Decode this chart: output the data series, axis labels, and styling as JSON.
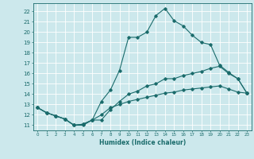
{
  "title": "",
  "xlabel": "Humidex (Indice chaleur)",
  "bg_color": "#cce8ec",
  "grid_color": "#ffffff",
  "line_color": "#1a6b6b",
  "xlim": [
    -0.5,
    23.5
  ],
  "ylim": [
    10.5,
    22.8
  ],
  "yticks": [
    11,
    12,
    13,
    14,
    15,
    16,
    17,
    18,
    19,
    20,
    21,
    22
  ],
  "xticks": [
    0,
    1,
    2,
    3,
    4,
    5,
    6,
    7,
    8,
    9,
    10,
    11,
    12,
    13,
    14,
    15,
    16,
    17,
    18,
    19,
    20,
    21,
    22,
    23
  ],
  "line1_x": [
    0,
    1,
    2,
    3,
    4,
    5,
    6,
    7,
    8,
    9,
    10,
    11,
    12,
    13,
    14,
    15,
    16,
    17,
    18,
    19,
    20,
    21,
    22,
    23
  ],
  "line1_y": [
    12.7,
    12.2,
    11.9,
    11.6,
    11.0,
    11.0,
    11.5,
    13.3,
    14.4,
    16.3,
    19.5,
    19.5,
    20.0,
    21.6,
    22.3,
    21.1,
    20.6,
    19.7,
    19.0,
    18.8,
    16.8,
    16.1,
    15.5,
    14.1
  ],
  "line2_x": [
    0,
    1,
    2,
    3,
    4,
    5,
    6,
    7,
    8,
    9,
    10,
    11,
    12,
    13,
    14,
    15,
    16,
    17,
    18,
    19,
    20,
    21,
    22,
    23
  ],
  "line2_y": [
    12.7,
    12.2,
    11.9,
    11.6,
    11.0,
    11.1,
    11.5,
    11.5,
    12.5,
    13.3,
    14.0,
    14.3,
    14.8,
    15.0,
    15.5,
    15.5,
    15.8,
    16.0,
    16.2,
    16.5,
    16.7,
    16.0,
    15.5,
    14.1
  ],
  "line3_x": [
    0,
    1,
    2,
    3,
    4,
    5,
    6,
    7,
    8,
    9,
    10,
    11,
    12,
    13,
    14,
    15,
    16,
    17,
    18,
    19,
    20,
    21,
    22,
    23
  ],
  "line3_y": [
    12.7,
    12.2,
    11.9,
    11.6,
    11.0,
    11.1,
    11.5,
    12.0,
    12.7,
    13.0,
    13.3,
    13.5,
    13.7,
    13.9,
    14.1,
    14.2,
    14.4,
    14.5,
    14.6,
    14.7,
    14.8,
    14.5,
    14.2,
    14.1
  ]
}
